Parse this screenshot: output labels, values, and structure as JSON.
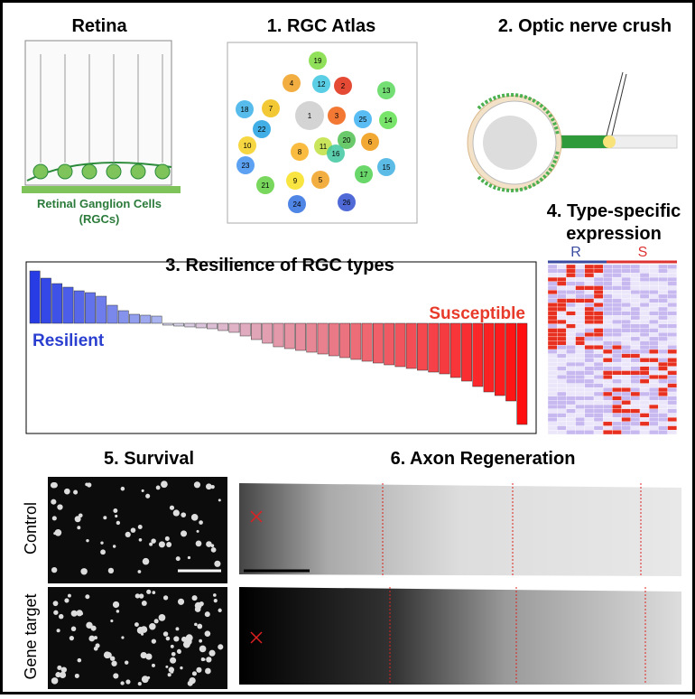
{
  "panels": [
    {
      "title": "Retina",
      "caption": [
        "Retinal Ganglion Cells",
        "(RGCs)"
      ]
    },
    {
      "title": "1. RGC Atlas",
      "cluster_labels": [
        "19",
        "4",
        "12",
        "2",
        "13",
        "18",
        "7",
        "1",
        "3",
        "25",
        "14",
        "22",
        "20",
        "6",
        "10",
        "11",
        "8",
        "16",
        "23",
        "17",
        "15",
        "9",
        "5",
        "21",
        "24",
        "26"
      ]
    },
    {
      "title": "2. Optic nerve crush"
    },
    {
      "title": "3. Resilience of RGC types",
      "labels": [
        "Resilient",
        "Susceptible"
      ],
      "bars": [
        58,
        50,
        44,
        40,
        36,
        34,
        30,
        20,
        14,
        10,
        9,
        8,
        -2,
        -3,
        -4,
        -5,
        -6,
        -8,
        -10,
        -14,
        -18,
        -22,
        -26,
        -28,
        -30,
        -32,
        -34,
        -36,
        -38,
        -40,
        -42,
        -44,
        -46,
        -48,
        -50,
        -52,
        -54,
        -56,
        -60,
        -64,
        -70,
        -76,
        -80,
        -86,
        -112
      ]
    },
    {
      "title": [
        "4. Type-specific",
        "expression"
      ],
      "groups": [
        "R",
        "S"
      ]
    },
    {
      "title": "5. Survival",
      "rows": [
        "Control",
        "Gene target"
      ]
    },
    {
      "title": "6. Axon Regeneration"
    }
  ]
}
